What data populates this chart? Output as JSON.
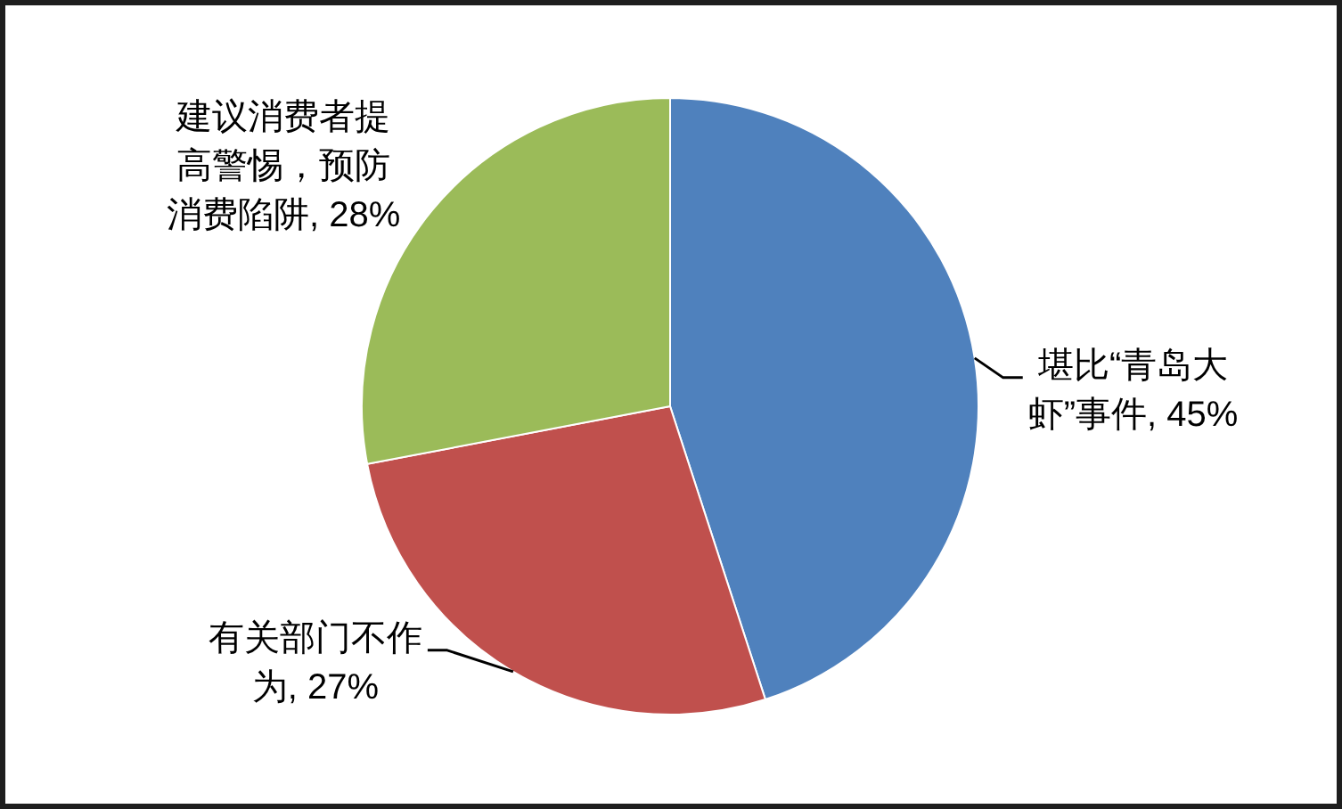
{
  "chart_data": {
    "type": "pie",
    "categories": [
      "堪比“青岛大虾”事件",
      "有关部门不作为",
      "建议消费者提高警惕，预防消费陷阱"
    ],
    "values": [
      45,
      27,
      28
    ],
    "colors": [
      "#4f81bd",
      "#c0504d",
      "#9bbb59"
    ],
    "value_labels": [
      "45%",
      "27%",
      "28%"
    ],
    "legend": false
  }
}
